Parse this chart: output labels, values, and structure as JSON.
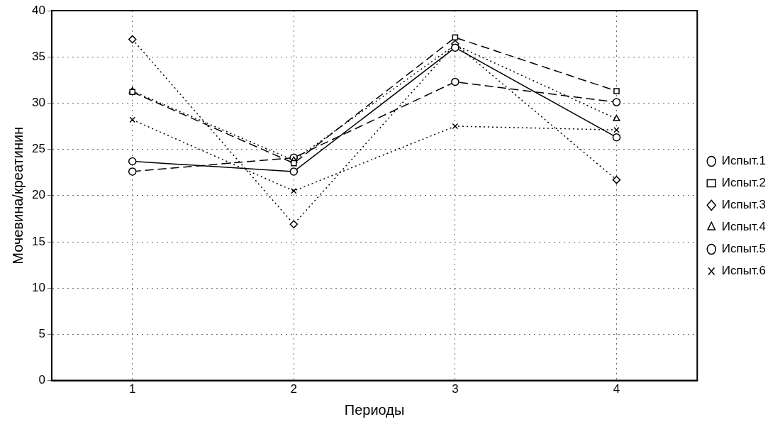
{
  "chart_data": {
    "type": "line",
    "xlabel": "Периоды",
    "ylabel": "Мочевина/креатинин",
    "x": [
      1,
      2,
      3,
      4
    ],
    "xlim": [
      0.5,
      4.5
    ],
    "xticks": [
      1,
      2,
      3,
      4
    ],
    "ylim": [
      0,
      40
    ],
    "yticks": [
      0,
      5,
      10,
      15,
      20,
      25,
      30,
      35,
      40
    ],
    "grid": true,
    "legend": "right",
    "series": [
      {
        "name": "Испыт.1",
        "color": "#000000",
        "marker": "circle",
        "line_style": "solid",
        "values": [
          23.7,
          22.6,
          36.0,
          26.3
        ]
      },
      {
        "name": "Испыт.2",
        "color": "#000000",
        "marker": "square",
        "line_style": "dashed",
        "values": [
          31.2,
          23.5,
          37.1,
          31.3
        ]
      },
      {
        "name": "Испыт.3",
        "color": "#000000",
        "marker": "diamond",
        "line_style": "dotted",
        "values": [
          36.9,
          16.9,
          36.4,
          21.7
        ]
      },
      {
        "name": "Испыт.4",
        "color": "#000000",
        "marker": "triangle",
        "line_style": "dotted",
        "values": [
          31.3,
          23.8,
          36.3,
          28.3
        ]
      },
      {
        "name": "Испыт.5",
        "color": "#000000",
        "marker": "circle",
        "line_style": "dashed",
        "values": [
          22.6,
          24.1,
          32.3,
          30.1
        ]
      },
      {
        "name": "Испыт.6",
        "color": "#000000",
        "marker": "cross",
        "line_style": "dotted",
        "values": [
          28.2,
          20.5,
          27.5,
          27.1
        ]
      }
    ]
  }
}
